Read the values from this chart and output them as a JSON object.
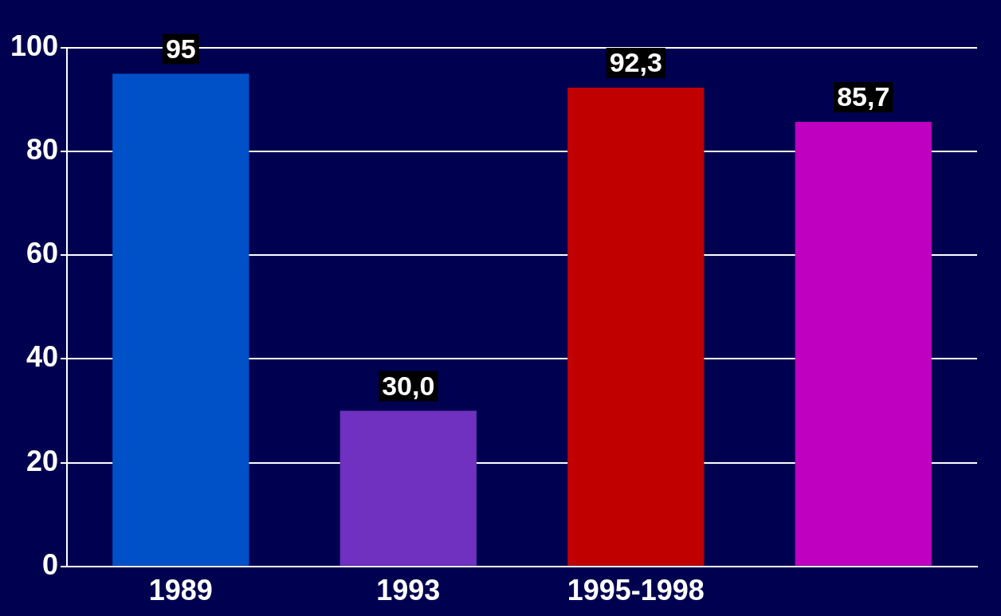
{
  "chart_data": {
    "type": "bar",
    "categories": [
      "1989",
      "1993",
      "1995-1998",
      null
    ],
    "values": [
      95,
      30,
      92.3,
      85.7
    ],
    "colors": [
      "#0050c8",
      "#7030c0",
      "#c00000",
      "#c000c0"
    ],
    "value_labels": [
      "95",
      "30,0",
      "92,3",
      "85,7"
    ],
    "ylim": [
      0,
      100
    ],
    "yticks": [
      0,
      20,
      40,
      60,
      80,
      100
    ],
    "grid": "y",
    "legend": false
  }
}
